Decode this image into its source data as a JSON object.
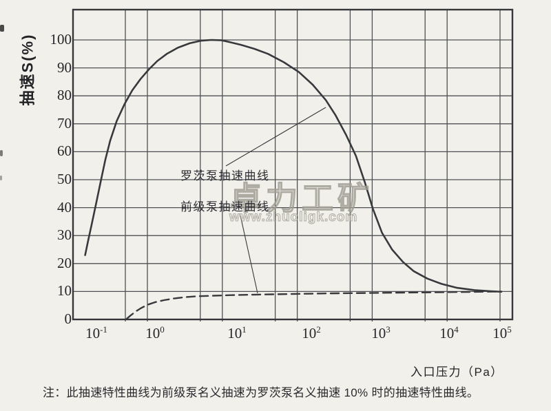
{
  "chart_data": {
    "type": "line",
    "title": "",
    "xlabel": "入口压力（Pa）",
    "ylabel": "抽速S(%)",
    "x_scale": "log",
    "x_range_pa": [
      0.1,
      100000
    ],
    "ylim": [
      0,
      110
    ],
    "grid": "on",
    "y_ticks": [
      0,
      10,
      20,
      30,
      40,
      50,
      60,
      70,
      80,
      90,
      100
    ],
    "x_ticks": [
      {
        "base": "10",
        "exp": -1
      },
      {
        "base": "10",
        "exp": 0
      },
      {
        "base": "10",
        "exp": 1
      },
      {
        "base": "10",
        "exp": 2
      },
      {
        "base": "10",
        "exp": 3
      },
      {
        "base": "10",
        "exp": 4
      },
      {
        "base": "10",
        "exp": 5
      }
    ],
    "series": [
      {
        "name": "罗茨泵抽速曲线",
        "style": "solid",
        "points": [
          [
            0.068,
            23
          ],
          [
            0.075,
            28
          ],
          [
            0.085,
            34
          ],
          [
            0.1,
            42
          ],
          [
            0.115,
            49
          ],
          [
            0.135,
            57
          ],
          [
            0.16,
            64
          ],
          [
            0.2,
            71
          ],
          [
            0.26,
            77
          ],
          [
            0.34,
            82
          ],
          [
            0.45,
            86
          ],
          [
            0.6,
            89.5
          ],
          [
            0.8,
            92.5
          ],
          [
            1.1,
            95
          ],
          [
            1.6,
            97.2
          ],
          [
            2.4,
            98.8
          ],
          [
            3.5,
            99.7
          ],
          [
            5,
            100
          ],
          [
            7,
            99.9
          ],
          [
            9.5,
            99.2
          ],
          [
            14,
            98.2
          ],
          [
            22,
            96.8
          ],
          [
            35,
            95
          ],
          [
            60,
            92
          ],
          [
            100,
            88.5
          ],
          [
            160,
            84
          ],
          [
            250,
            78.5
          ],
          [
            350,
            73
          ],
          [
            500,
            66
          ],
          [
            700,
            58.5
          ],
          [
            950,
            49
          ],
          [
            1250,
            39.5
          ],
          [
            1700,
            31
          ],
          [
            2400,
            25
          ],
          [
            3500,
            20.5
          ],
          [
            5000,
            17.3
          ],
          [
            8000,
            14.6
          ],
          [
            13000,
            12.7
          ],
          [
            22000,
            11.3
          ],
          [
            40000,
            10.5
          ],
          [
            70000,
            10.1
          ],
          [
            100000,
            9.9
          ]
        ]
      },
      {
        "name": "前级泵抽速曲线",
        "style": "dashed",
        "points": [
          [
            0.28,
            0.2
          ],
          [
            0.32,
            1.4
          ],
          [
            0.38,
            2.8
          ],
          [
            0.46,
            4.1
          ],
          [
            0.58,
            5.3
          ],
          [
            0.75,
            6.2
          ],
          [
            1.0,
            6.9
          ],
          [
            1.4,
            7.5
          ],
          [
            2.1,
            8.0
          ],
          [
            3.2,
            8.3
          ],
          [
            5.5,
            8.5
          ],
          [
            10,
            8.7
          ],
          [
            25,
            8.9
          ],
          [
            70,
            9.1
          ],
          [
            250,
            9.3
          ],
          [
            1000,
            9.45
          ],
          [
            4000,
            9.6
          ],
          [
            15000,
            9.75
          ],
          [
            50000,
            9.9
          ],
          [
            100000,
            10
          ]
        ]
      }
    ]
  },
  "labels": {
    "roots_curve": "罗茨泵抽速曲线",
    "backing_curve": "前级泵抽速曲线"
  },
  "watermark": {
    "brand": "卓力工矿",
    "url": "www.zhuoligk.com"
  },
  "note": {
    "text": "注：此抽速特性曲线为前级泵名义抽速为罗茨泵名义抽速 10% 时的抽速特性曲线。"
  },
  "colors": {
    "background": "#f2f0eb",
    "border": "#35373a",
    "grid": "#4e5053",
    "curve": "#38393c",
    "text": "#26262a",
    "watermark": "#a29e95"
  }
}
